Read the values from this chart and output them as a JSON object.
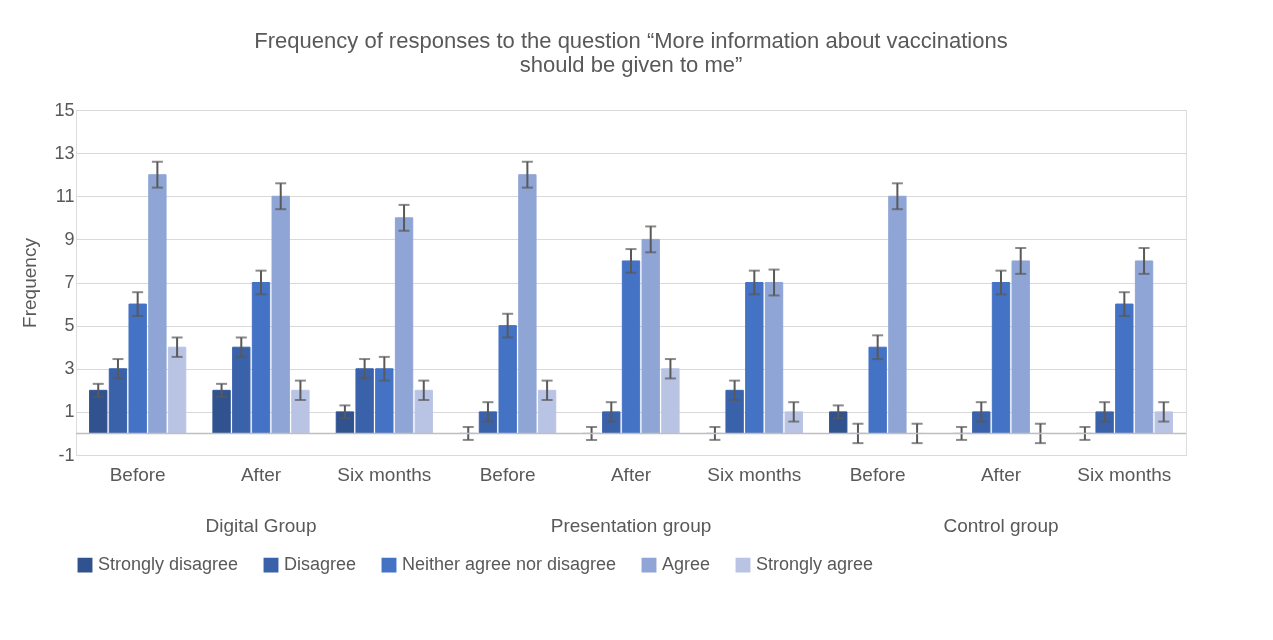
{
  "chart_data": {
    "type": "bar",
    "title": "Frequency of responses to the question “More information about vaccinations should be given to me”",
    "ylabel": "Frequency",
    "categories": [
      "Before",
      "After",
      "Six months",
      "Before",
      "After",
      "Six months",
      "Before",
      "After",
      "Six months"
    ],
    "annotations": [
      "Digital Group",
      "Presentation group",
      "Control group"
    ],
    "series": [
      {
        "name": "Strongly disagree",
        "color": "#30538f",
        "values": [
          2,
          2,
          1,
          0,
          0,
          0,
          1,
          0,
          0
        ],
        "errors": [
          0.3,
          0.3,
          0.3,
          0.3,
          0.3,
          0.3,
          0.3,
          0.3,
          0.3
        ]
      },
      {
        "name": "Disagree",
        "color": "#3a62ab",
        "values": [
          3,
          4,
          3,
          1,
          1,
          2,
          0,
          1,
          1
        ],
        "errors": [
          0.45,
          0.45,
          0.45,
          0.45,
          0.45,
          0.45,
          0.45,
          0.45,
          0.45
        ]
      },
      {
        "name": "Neither agree nor disagree",
        "color": "#4472c4",
        "values": [
          6,
          7,
          3,
          5,
          8,
          7,
          4,
          7,
          6
        ],
        "errors": [
          0.55,
          0.55,
          0.55,
          0.55,
          0.55,
          0.55,
          0.55,
          0.55,
          0.55
        ]
      },
      {
        "name": "Agree",
        "color": "#8fa5d6",
        "values": [
          12,
          11,
          10,
          12,
          9,
          7,
          11,
          8,
          8
        ],
        "errors": [
          0.6,
          0.6,
          0.6,
          0.6,
          0.6,
          0.6,
          0.6,
          0.6,
          0.6
        ]
      },
      {
        "name": "Strongly agree",
        "color": "#b9c4e4",
        "values": [
          4,
          2,
          2,
          2,
          3,
          1,
          0,
          0,
          1
        ],
        "errors": [
          0.45,
          0.45,
          0.45,
          0.45,
          0.45,
          0.45,
          0.45,
          0.45,
          0.45
        ]
      }
    ],
    "ylim": [
      -1,
      15
    ],
    "yticks": [
      -1,
      1,
      3,
      5,
      7,
      9,
      11,
      13,
      15
    ],
    "ref_lines": [
      {
        "axis": "y",
        "value": 0,
        "color": "#bfbfbf"
      }
    ],
    "grid": "y",
    "legend": "bottom"
  }
}
